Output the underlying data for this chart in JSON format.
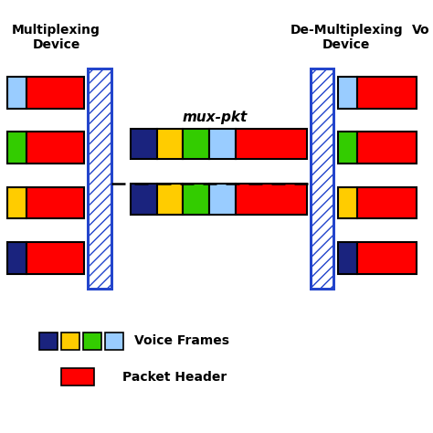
{
  "bg_color": "#ffffff",
  "title_left": "Multiplexing\nDevice",
  "title_right": "De-Multiplexing\nDevice",
  "title_vo": "Vo",
  "mux_pkt_label": "mux-pkt",
  "colors": {
    "red": "#ff0000",
    "blue": "#1a237e",
    "yellow": "#ffcc00",
    "green": "#33cc00",
    "light_blue": "#99ccff",
    "black": "#000000",
    "hatch_color": "#4444ff",
    "hatch_face": "#ffffff"
  },
  "legend_voice_frames": "Voice Frames",
  "legend_packet_header": "Packet Header",
  "left_inputs": [
    [
      "light_blue",
      "red"
    ],
    [
      "green",
      "red"
    ],
    [
      "yellow",
      "red"
    ],
    [
      "blue",
      "red"
    ]
  ],
  "right_outputs": [
    [
      "light_blue",
      "red"
    ],
    [
      "green",
      "red"
    ],
    [
      "yellow",
      "red"
    ],
    [
      "blue",
      "red"
    ]
  ],
  "mux_pkt_upper": [
    "blue",
    "yellow",
    "green",
    "light_blue",
    "red"
  ],
  "mux_pkt_lower": [
    "blue",
    "yellow",
    "green",
    "light_blue",
    "red"
  ]
}
